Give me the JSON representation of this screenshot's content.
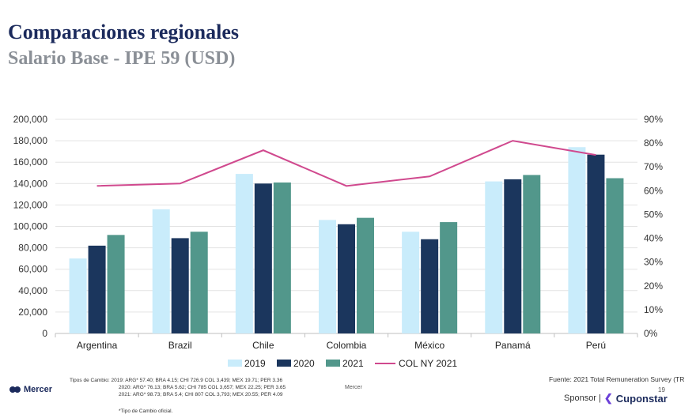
{
  "header": {
    "title": "Comparaciones regionales",
    "subtitle": "Salario Base - IPE 59 (USD)"
  },
  "chart_data": {
    "type": "bar",
    "categories": [
      "Argentina",
      "Brazil",
      "Chile",
      "Colombia",
      "México",
      "Panamá",
      "Perú"
    ],
    "series": [
      {
        "name": "2019",
        "type": "bar",
        "axis": "left",
        "color": "#c9ecfb",
        "values": [
          70000,
          116000,
          149000,
          106000,
          95000,
          142000,
          174000
        ]
      },
      {
        "name": "2020",
        "type": "bar",
        "axis": "left",
        "color": "#1b365d",
        "values": [
          82000,
          89000,
          140000,
          102000,
          88000,
          144000,
          167000
        ]
      },
      {
        "name": "2021",
        "type": "bar",
        "axis": "left",
        "color": "#52978b",
        "values": [
          92000,
          95000,
          141000,
          108000,
          104000,
          148000,
          145000
        ]
      },
      {
        "name": "COL NY 2021",
        "type": "line",
        "axis": "right",
        "color": "#d0498e",
        "values": [
          62,
          63,
          77,
          62,
          66,
          81,
          75
        ]
      }
    ],
    "y_left": {
      "min": 0,
      "max": 200000,
      "step": 20000,
      "ticks": [
        "0",
        "20,000",
        "40,000",
        "60,000",
        "80,000",
        "100,000",
        "120,000",
        "140,000",
        "160,000",
        "180,000",
        "200,000"
      ]
    },
    "y_right": {
      "min": 0,
      "max": 90,
      "step": 10,
      "ticks": [
        "0%",
        "10%",
        "20%",
        "30%",
        "40%",
        "50%",
        "60%",
        "70%",
        "80%",
        "90%"
      ]
    },
    "grid": true,
    "legend_position": "bottom"
  },
  "footer": {
    "exchange_rates": [
      "Tipos de Cambio: 2019: ARG* 57.40; BRA 4.15; CHI 726.9 COL 3,439; MEX 19.71; PER 3.36",
      "2020: ARG* 76.13; BRA 5.62; CHI 785 COL 3,657; MEX 22.25; PER 3.65",
      "2021: ARG* 98.73; BRA 5.4; CHI 807 COL 3,793; MEX 20.55; PER 4.09"
    ],
    "footnote": "*Tipo de Cambio oficial.",
    "source": "Fuente: 2021 Total Remuneration Survey (TR",
    "center_label": "Mercer",
    "page_number": "19",
    "logo_text": "Mercer",
    "sponsor_label": "Sponsor |",
    "sponsor_brand": "Cuponstar"
  }
}
